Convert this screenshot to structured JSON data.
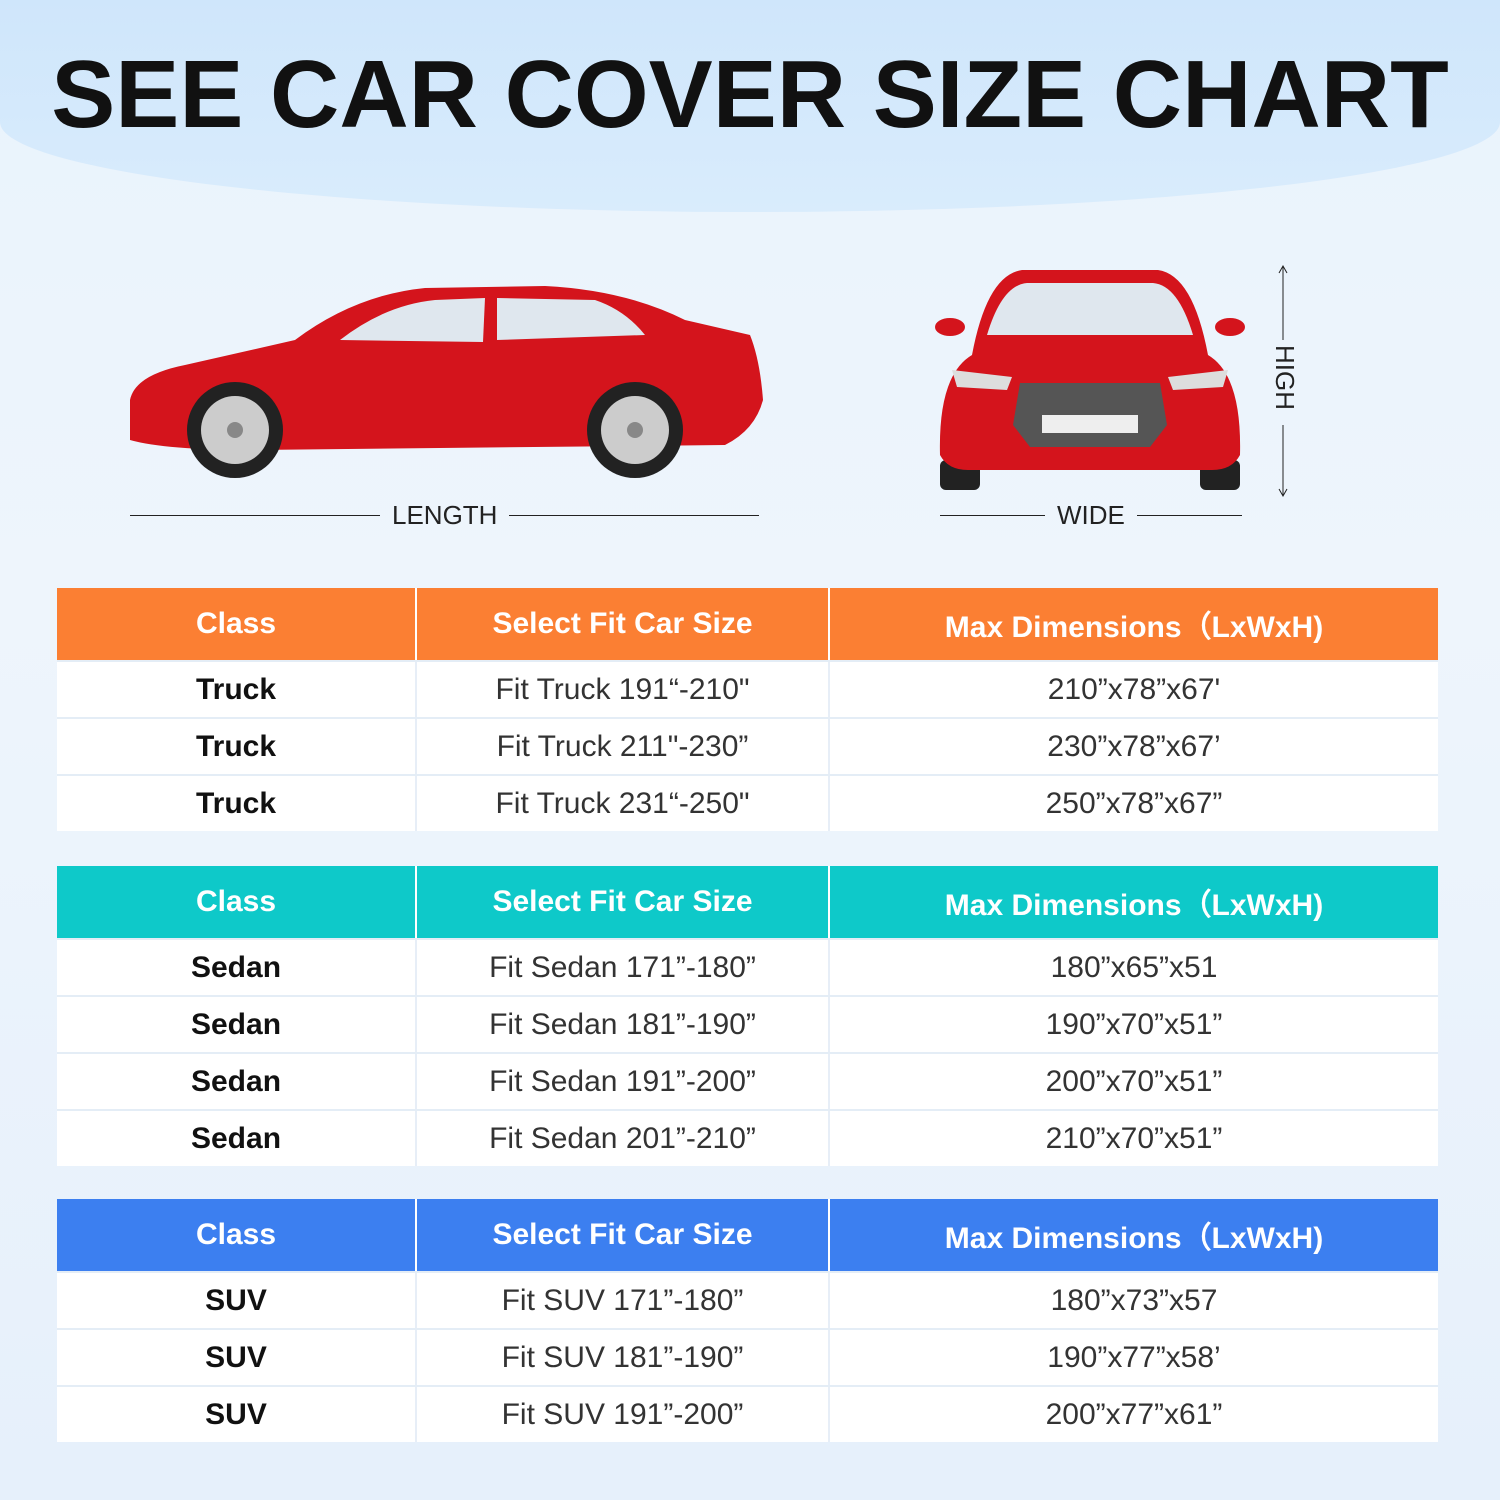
{
  "title": "SEE CAR COVER SIZE CHART",
  "labels": {
    "length": "LENGTH",
    "wide": "WIDE",
    "high": "HIGH"
  },
  "colors": {
    "truck_header": "#fb7f33",
    "sedan_header": "#0ec9c9",
    "suv_header": "#3c7ff0",
    "car": "#d4141c"
  },
  "tables": [
    {
      "header": {
        "class": "Class",
        "fit": "Select Fit Car Size",
        "max": "Max Dimensions（LxWxH)"
      },
      "rows": [
        {
          "class": "Truck",
          "fit": "Fit Truck 191“-210\"",
          "max": "210”x78”x67'"
        },
        {
          "class": "Truck",
          "fit": "Fit Truck 211\"-230”",
          "max": "230”x78”x67’"
        },
        {
          "class": "Truck",
          "fit": "Fit Truck 231“-250\"",
          "max": "250”x78”x67”"
        }
      ]
    },
    {
      "header": {
        "class": "Class",
        "fit": "Select Fit Car Size",
        "max": "Max Dimensions（LxWxH)"
      },
      "rows": [
        {
          "class": "Sedan",
          "fit": "Fit Sedan 171”-180”",
          "max": "180”x65”x51"
        },
        {
          "class": "Sedan",
          "fit": "Fit Sedan 181”-190”",
          "max": "190”x70”x51”"
        },
        {
          "class": "Sedan",
          "fit": "Fit Sedan 191”-200”",
          "max": "200”x70”x51”"
        },
        {
          "class": "Sedan",
          "fit": "Fit Sedan 201”-210”",
          "max": "210”x70”x51”"
        }
      ]
    },
    {
      "header": {
        "class": "Class",
        "fit": "Select Fit Car Size",
        "max": "Max Dimensions（LxWxH)"
      },
      "rows": [
        {
          "class": "SUV",
          "fit": "Fit SUV 171”-180”",
          "max": "180”x73”x57"
        },
        {
          "class": "SUV",
          "fit": "Fit SUV 181”-190”",
          "max": "190”x77”x58’"
        },
        {
          "class": "SUV",
          "fit": "Fit SUV 191”-200”",
          "max": "200”x77”x61”"
        }
      ]
    }
  ]
}
